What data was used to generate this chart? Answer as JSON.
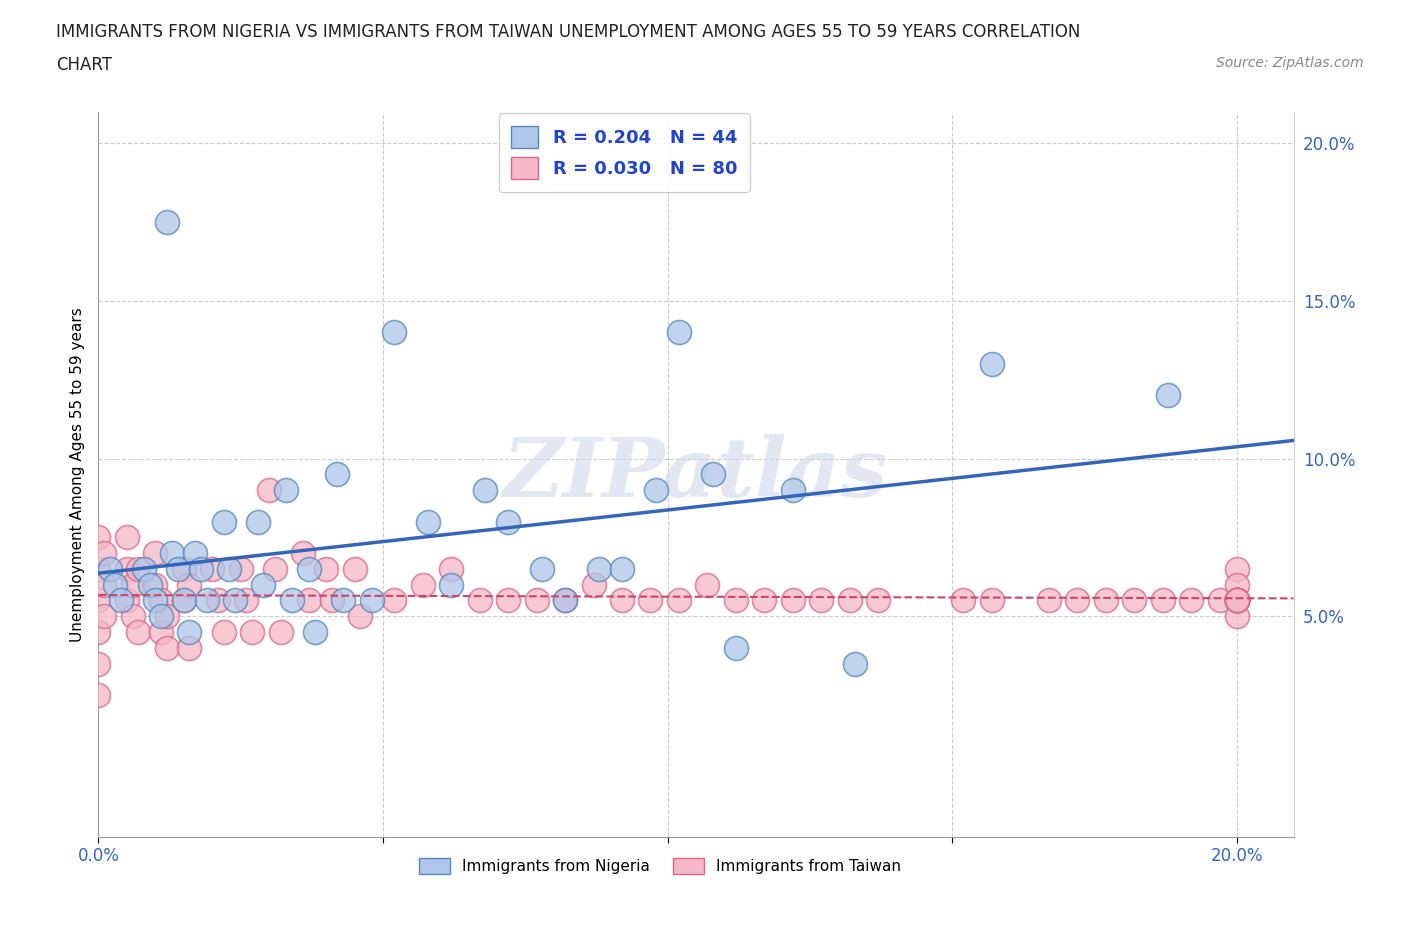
{
  "title_line1": "IMMIGRANTS FROM NIGERIA VS IMMIGRANTS FROM TAIWAN UNEMPLOYMENT AMONG AGES 55 TO 59 YEARS CORRELATION",
  "title_line2": "CHART",
  "source": "Source: ZipAtlas.com",
  "ylabel": "Unemployment Among Ages 55 to 59 years",
  "xlim": [
    0.0,
    0.21
  ],
  "ylim": [
    -0.02,
    0.21
  ],
  "xticks": [
    0.0,
    0.05,
    0.1,
    0.15,
    0.2
  ],
  "yticks": [
    0.05,
    0.1,
    0.15,
    0.2
  ],
  "xticklabels_bottom": [
    "0.0%",
    "",
    "",
    "",
    "20.0%"
  ],
  "yticklabels_right": [
    "5.0%",
    "10.0%",
    "15.0%",
    "20.0%"
  ],
  "nigeria_color": "#aec6e8",
  "taiwan_color": "#f4b8c8",
  "nigeria_edge_color": "#5588bb",
  "taiwan_edge_color": "#dd6688",
  "nigeria_line_color": "#3366bb",
  "taiwan_line_color": "#cc4466",
  "R_nigeria": 0.204,
  "N_nigeria": 44,
  "R_taiwan": 0.03,
  "N_taiwan": 80,
  "legend_label_nigeria": "Immigrants from Nigeria",
  "legend_label_taiwan": "Immigrants from Taiwan",
  "watermark": "ZIPatlas",
  "background_color": "#ffffff",
  "grid_color": "#cccccc",
  "nigeria_x": [
    0.002,
    0.003,
    0.004,
    0.008,
    0.009,
    0.01,
    0.011,
    0.012,
    0.013,
    0.014,
    0.015,
    0.016,
    0.017,
    0.018,
    0.019,
    0.022,
    0.023,
    0.024,
    0.028,
    0.029,
    0.033,
    0.034,
    0.037,
    0.038,
    0.042,
    0.043,
    0.048,
    0.052,
    0.058,
    0.062,
    0.068,
    0.072,
    0.078,
    0.082,
    0.088,
    0.092,
    0.098,
    0.102,
    0.108,
    0.112,
    0.122,
    0.133,
    0.157,
    0.188
  ],
  "nigeria_y": [
    0.065,
    0.06,
    0.055,
    0.065,
    0.06,
    0.055,
    0.05,
    0.175,
    0.07,
    0.065,
    0.055,
    0.045,
    0.07,
    0.065,
    0.055,
    0.08,
    0.065,
    0.055,
    0.08,
    0.06,
    0.09,
    0.055,
    0.065,
    0.045,
    0.095,
    0.055,
    0.055,
    0.14,
    0.08,
    0.06,
    0.09,
    0.08,
    0.065,
    0.055,
    0.065,
    0.065,
    0.09,
    0.14,
    0.095,
    0.04,
    0.09,
    0.035,
    0.13,
    0.12
  ],
  "taiwan_x": [
    0.0,
    0.0,
    0.0,
    0.0,
    0.0,
    0.0,
    0.001,
    0.001,
    0.001,
    0.005,
    0.005,
    0.005,
    0.006,
    0.006,
    0.007,
    0.007,
    0.01,
    0.01,
    0.011,
    0.011,
    0.012,
    0.012,
    0.015,
    0.015,
    0.016,
    0.016,
    0.02,
    0.021,
    0.022,
    0.025,
    0.026,
    0.027,
    0.03,
    0.031,
    0.032,
    0.036,
    0.037,
    0.04,
    0.041,
    0.045,
    0.046,
    0.052,
    0.057,
    0.062,
    0.067,
    0.072,
    0.077,
    0.082,
    0.087,
    0.092,
    0.097,
    0.102,
    0.107,
    0.112,
    0.117,
    0.122,
    0.127,
    0.132,
    0.137,
    0.152,
    0.157,
    0.167,
    0.172,
    0.177,
    0.182,
    0.187,
    0.192,
    0.197,
    0.2,
    0.2,
    0.2,
    0.2,
    0.2,
    0.2,
    0.2,
    0.2,
    0.2,
    0.2,
    0.2,
    0.2
  ],
  "taiwan_y": [
    0.075,
    0.065,
    0.055,
    0.045,
    0.035,
    0.025,
    0.07,
    0.06,
    0.05,
    0.075,
    0.065,
    0.055,
    0.06,
    0.05,
    0.065,
    0.045,
    0.07,
    0.06,
    0.055,
    0.045,
    0.05,
    0.04,
    0.065,
    0.055,
    0.06,
    0.04,
    0.065,
    0.055,
    0.045,
    0.065,
    0.055,
    0.045,
    0.09,
    0.065,
    0.045,
    0.07,
    0.055,
    0.065,
    0.055,
    0.065,
    0.05,
    0.055,
    0.06,
    0.065,
    0.055,
    0.055,
    0.055,
    0.055,
    0.06,
    0.055,
    0.055,
    0.055,
    0.06,
    0.055,
    0.055,
    0.055,
    0.055,
    0.055,
    0.055,
    0.055,
    0.055,
    0.055,
    0.055,
    0.055,
    0.055,
    0.055,
    0.055,
    0.055,
    0.065,
    0.06,
    0.055,
    0.05,
    0.055,
    0.055,
    0.055,
    0.055,
    0.055,
    0.055,
    0.055,
    0.055
  ]
}
